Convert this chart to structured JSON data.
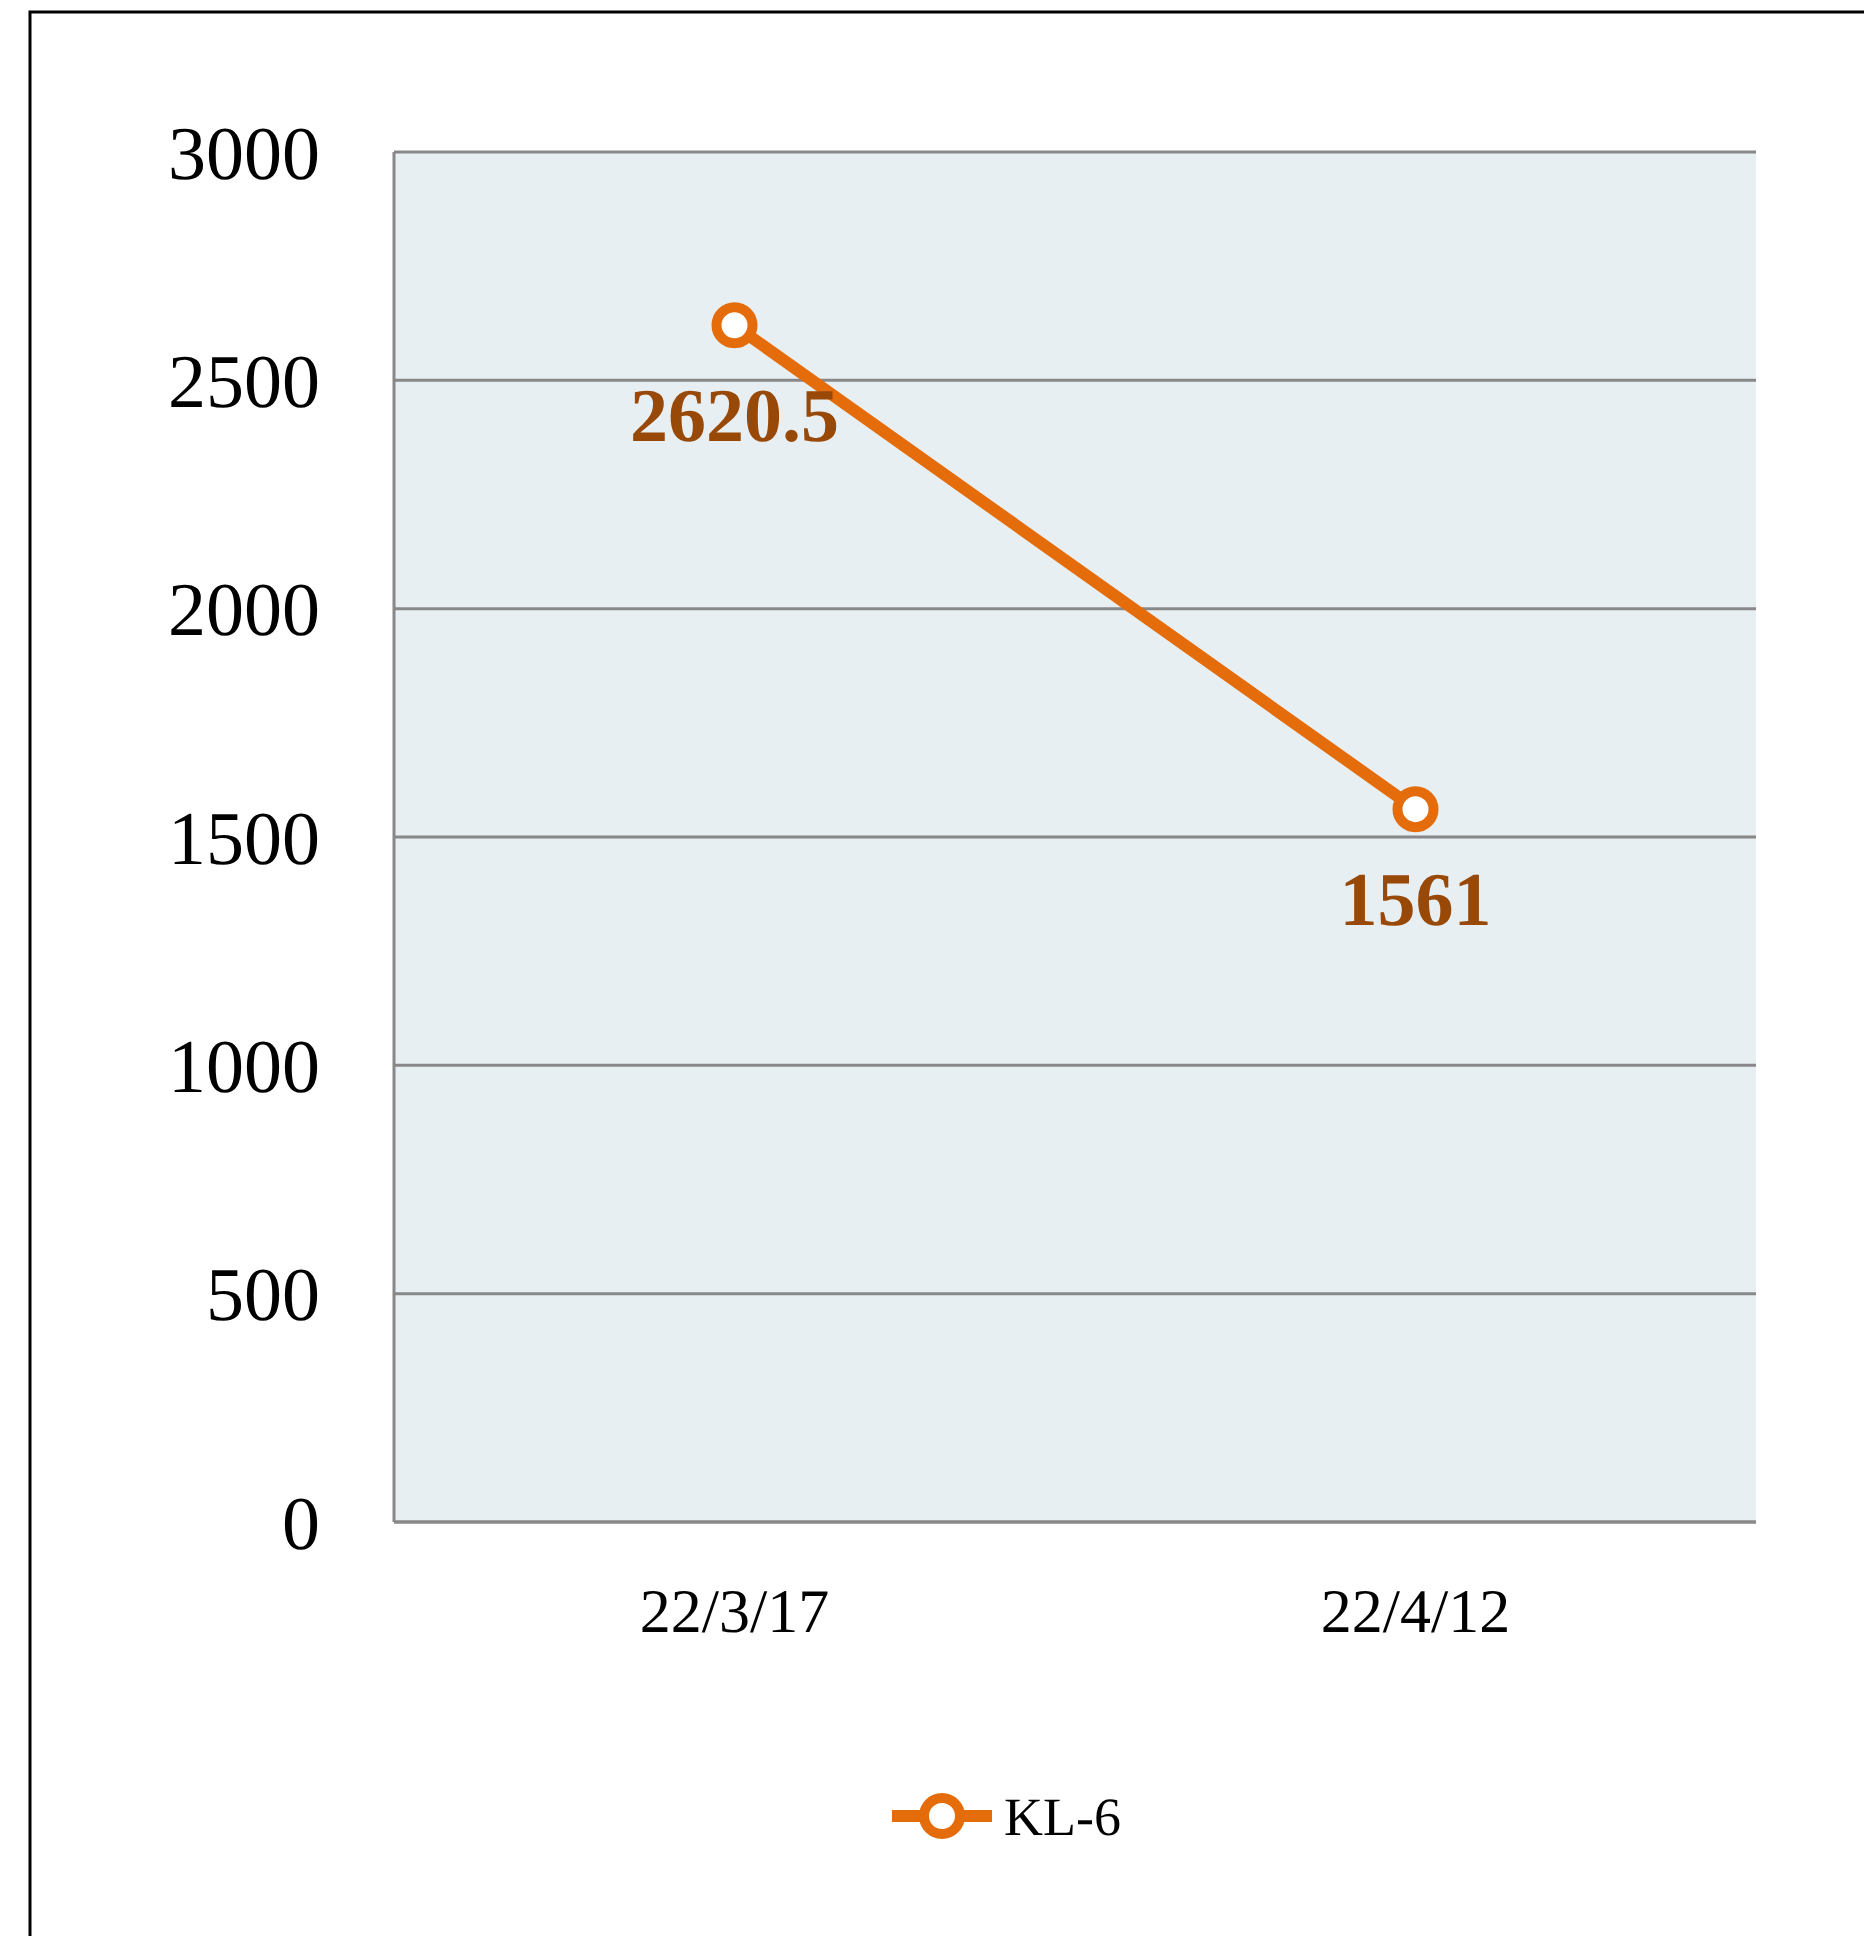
{
  "chart_data": {
    "type": "line",
    "categories": [
      "22/3/17",
      "22/4/12"
    ],
    "series": [
      {
        "name": "KL-6",
        "color": "#e46c0a",
        "values": [
          2620.5,
          1561
        ]
      }
    ],
    "ylim": [
      0,
      3000
    ],
    "yticks": [
      0,
      500,
      1000,
      1500,
      2000,
      2500,
      3000
    ],
    "grid": "y",
    "legend": "bottom",
    "marker": "circle",
    "data_labels": true
  }
}
